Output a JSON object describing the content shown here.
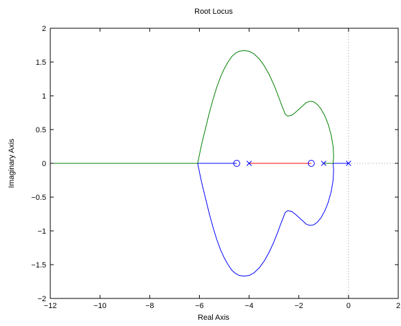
{
  "chart_data": {
    "type": "line",
    "title": "Root Locus",
    "xlabel": "Real Axis",
    "ylabel": "Imaginary Axis",
    "xlim": [
      -12,
      2
    ],
    "ylim": [
      -2,
      2
    ],
    "x_ticks": [
      -12,
      -10,
      -8,
      -6,
      -4,
      -2,
      0,
      2
    ],
    "y_ticks": [
      -2,
      -1.5,
      -1,
      -0.5,
      0,
      0.5,
      1,
      1.5,
      2
    ],
    "x_tick_labels": [
      "−12",
      "−10",
      "−8",
      "−6",
      "−4",
      "−2",
      "0",
      "2"
    ],
    "y_tick_labels": [
      "−2",
      "−1.5",
      "−1",
      "−0.5",
      "0",
      "0.5",
      "1",
      "1.5",
      "2"
    ],
    "grid": false,
    "colors": {
      "blue": "#0000ff",
      "green": "#007f00",
      "red": "#ff0000",
      "axis_marker": "#999999",
      "frame": "#000000"
    },
    "poles": [
      {
        "x": 0,
        "y": 0
      },
      {
        "x": -1,
        "y": 0
      },
      {
        "x": -4,
        "y": 0
      }
    ],
    "zeros": [
      {
        "x": -1.5,
        "y": 0
      },
      {
        "x": -4.5,
        "y": 0
      }
    ],
    "series": [
      {
        "color": "blue",
        "x": [
          0,
          -0.35,
          -0.62
        ],
        "y": [
          0,
          0,
          0
        ]
      },
      {
        "color": "green",
        "x": [
          -1,
          -0.8,
          -0.62
        ],
        "y": [
          0,
          0,
          0
        ]
      },
      {
        "color": "green",
        "x": [
          -0.62,
          -0.6,
          -0.62,
          -0.7,
          -0.82,
          -0.95,
          -1.1,
          -1.25,
          -1.4,
          -1.55,
          -1.7,
          -1.85,
          -2.0,
          -2.15,
          -2.3,
          -2.45,
          -2.55,
          -2.7,
          -2.85,
          -3.0,
          -3.2,
          -3.4,
          -3.6,
          -3.8,
          -4.0,
          -4.2,
          -4.4,
          -4.55,
          -4.7,
          -4.85,
          -5.0,
          -5.15,
          -5.3,
          -5.45,
          -5.6,
          -5.7,
          -5.8,
          -5.9,
          -5.97,
          -6.02,
          -6.05,
          -6.07
        ],
        "y": [
          0,
          0.1,
          0.25,
          0.42,
          0.58,
          0.7,
          0.8,
          0.87,
          0.91,
          0.92,
          0.9,
          0.85,
          0.8,
          0.75,
          0.71,
          0.7,
          0.73,
          0.87,
          1.02,
          1.16,
          1.32,
          1.45,
          1.55,
          1.62,
          1.66,
          1.67,
          1.66,
          1.63,
          1.58,
          1.5,
          1.4,
          1.28,
          1.13,
          0.95,
          0.75,
          0.6,
          0.45,
          0.3,
          0.18,
          0.09,
          0.04,
          0
        ]
      },
      {
        "color": "blue",
        "x": [
          -0.62,
          -0.6,
          -0.62,
          -0.7,
          -0.82,
          -0.95,
          -1.1,
          -1.25,
          -1.4,
          -1.55,
          -1.7,
          -1.85,
          -2.0,
          -2.15,
          -2.3,
          -2.45,
          -2.55,
          -2.7,
          -2.85,
          -3.0,
          -3.2,
          -3.4,
          -3.6,
          -3.8,
          -4.0,
          -4.2,
          -4.4,
          -4.55,
          -4.7,
          -4.85,
          -5.0,
          -5.15,
          -5.3,
          -5.45,
          -5.6,
          -5.7,
          -5.8,
          -5.9,
          -5.97,
          -6.02,
          -6.05,
          -6.07
        ],
        "y": [
          0,
          -0.1,
          -0.25,
          -0.42,
          -0.58,
          -0.7,
          -0.8,
          -0.87,
          -0.91,
          -0.92,
          -0.9,
          -0.85,
          -0.8,
          -0.75,
          -0.71,
          -0.7,
          -0.73,
          -0.87,
          -1.02,
          -1.16,
          -1.32,
          -1.45,
          -1.55,
          -1.62,
          -1.66,
          -1.67,
          -1.66,
          -1.63,
          -1.58,
          -1.5,
          -1.4,
          -1.28,
          -1.13,
          -0.95,
          -0.75,
          -0.6,
          -0.45,
          -0.3,
          -0.18,
          -0.09,
          -0.04,
          0
        ]
      },
      {
        "color": "red",
        "x": [
          -4,
          -3.0,
          -2.0,
          -1.5
        ],
        "y": [
          0,
          0,
          0,
          0
        ]
      },
      {
        "color": "blue",
        "x": [
          -6.07,
          -5.5,
          -5.0,
          -4.5
        ],
        "y": [
          0,
          0,
          0,
          0
        ]
      },
      {
        "color": "green",
        "x": [
          -6.07,
          -8,
          -10,
          -12
        ],
        "y": [
          0,
          0,
          0,
          0
        ]
      }
    ]
  }
}
